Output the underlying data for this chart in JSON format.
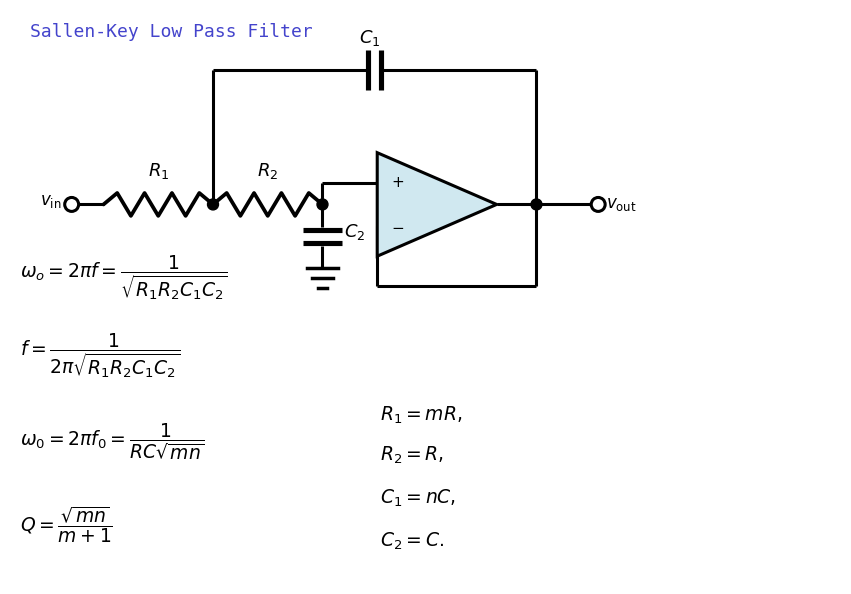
{
  "title": "Sallen-Key Low Pass Filter",
  "title_color": "#4444cc",
  "title_fontsize": 13,
  "bg_color": "#ffffff",
  "opamp_fill": "#d0e8f0",
  "line_color": "#000000",
  "line_width": 2.2
}
